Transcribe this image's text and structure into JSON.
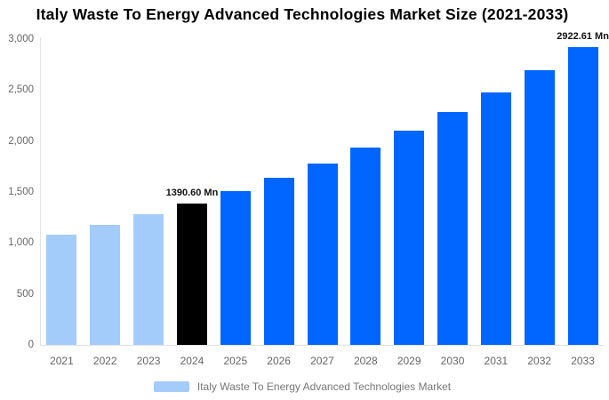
{
  "title": "Italy Waste To Energy Advanced Technologies Market Size (2021-2033)",
  "legend": {
    "label": "Italy Waste To Energy Advanced Technologies Market",
    "swatch_color": "#a3ccfa"
  },
  "colors": {
    "historical_bar": "#a3ccfa",
    "current_year_bar": "#000000",
    "forecast_bar": "#0066ff",
    "axis_line": "#e3e3e3",
    "tick_text": "#666666",
    "legend_text": "#777777",
    "data_label_text": "#111111"
  },
  "chart_data": {
    "type": "bar",
    "title": "Italy Waste To Energy Advanced Technologies Market Size (2021-2033)",
    "xlabel": "",
    "ylabel": "",
    "categories": [
      "2021",
      "2022",
      "2023",
      "2024",
      "2025",
      "2026",
      "2027",
      "2028",
      "2029",
      "2030",
      "2031",
      "2032",
      "2033"
    ],
    "series": [
      {
        "name": "Italy Waste To Energy Advanced Technologies Market",
        "values": [
          1080,
          1176,
          1281,
          1390.6,
          1511,
          1641,
          1782,
          1935,
          2102,
          2283,
          2479,
          2692,
          2922.61
        ]
      }
    ],
    "ylim": [
      0,
      3000
    ],
    "yticks": [
      0,
      500,
      1000,
      1500,
      2000,
      2500,
      3000
    ],
    "ytick_labels": [
      "0",
      "500",
      "1,000",
      "1,500",
      "2,000",
      "2,500",
      "3,000"
    ],
    "grid": false,
    "legend_position": "bottom",
    "bar_colors": [
      "#a3ccfa",
      "#a3ccfa",
      "#a3ccfa",
      "#000000",
      "#0066ff",
      "#0066ff",
      "#0066ff",
      "#0066ff",
      "#0066ff",
      "#0066ff",
      "#0066ff",
      "#0066ff",
      "#0066ff"
    ],
    "data_labels": [
      {
        "category": "2024",
        "text": "1390.60 Mn"
      },
      {
        "category": "2033",
        "text": "2922.61 Mn"
      }
    ],
    "units": "Mn"
  }
}
